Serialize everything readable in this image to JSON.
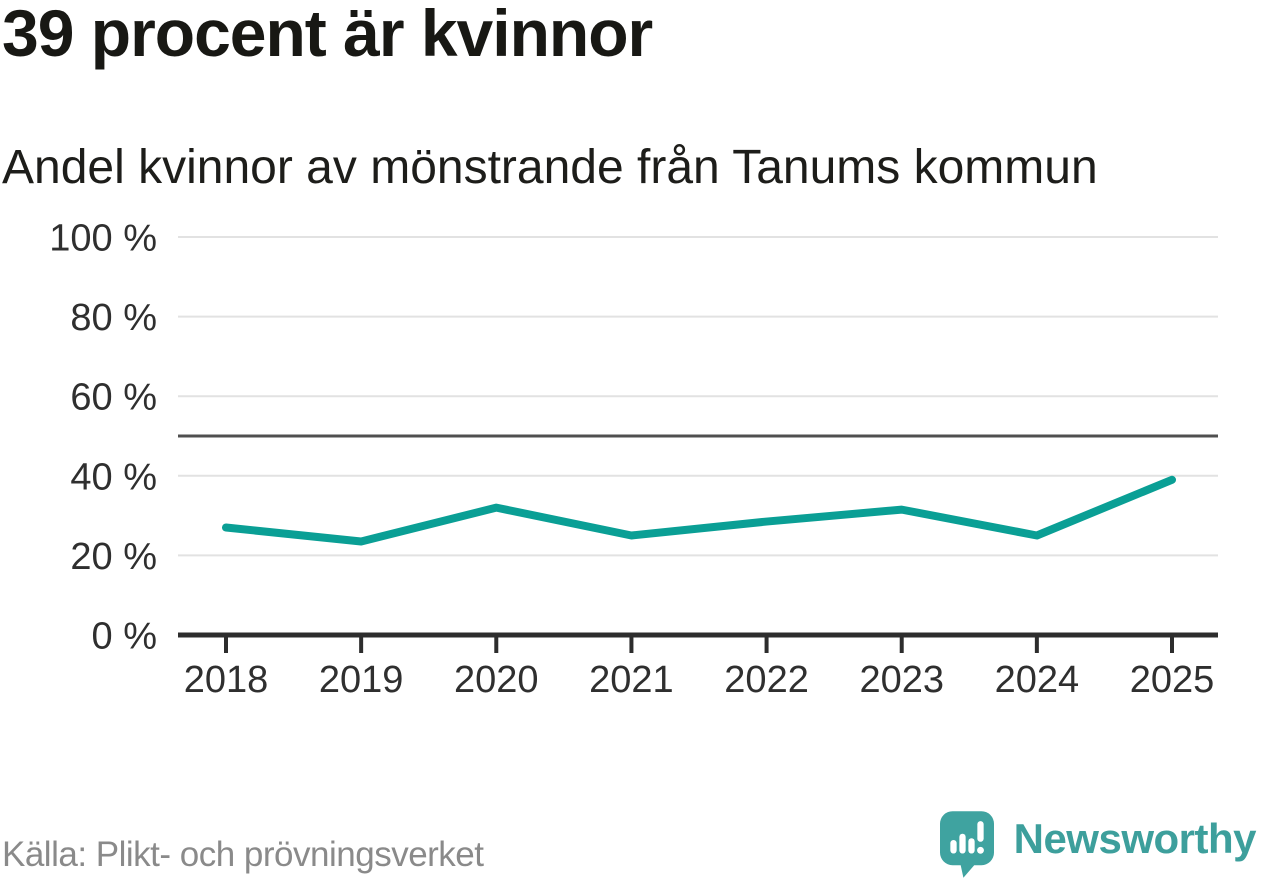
{
  "header": {
    "title": "39 procent är kvinnor",
    "subtitle": "Andel kvinnor av mönstrande från Tanums kommun"
  },
  "footer": {
    "source": "Källa: Plikt- och prövningsverket",
    "brand": "Newsworthy"
  },
  "colors": {
    "line": "#0a9f95",
    "reference_line": "#4f4f4f",
    "grid": "#e2e2e2",
    "axis": "#2d2d2d",
    "tick_text": "#2f2f2f",
    "brand_teal": "#3fa3a0"
  },
  "chart_data": {
    "type": "line",
    "title": "39 procent är kvinnor",
    "subtitle": "Andel kvinnor av mönstrande från Tanums kommun",
    "categories": [
      "2018",
      "2019",
      "2020",
      "2021",
      "2022",
      "2023",
      "2024",
      "2025"
    ],
    "series": [
      {
        "name": "Andel kvinnor av mönstrande",
        "values": [
          27,
          23.5,
          32,
          25,
          28.5,
          31.5,
          25,
          39
        ]
      }
    ],
    "xlabel": "",
    "ylabel": "",
    "ylim": [
      0,
      100
    ],
    "yticks": [
      0,
      20,
      40,
      60,
      80,
      100
    ],
    "ytick_format": "{v} %",
    "reference_line": 50,
    "grid": true,
    "legend": "none"
  }
}
